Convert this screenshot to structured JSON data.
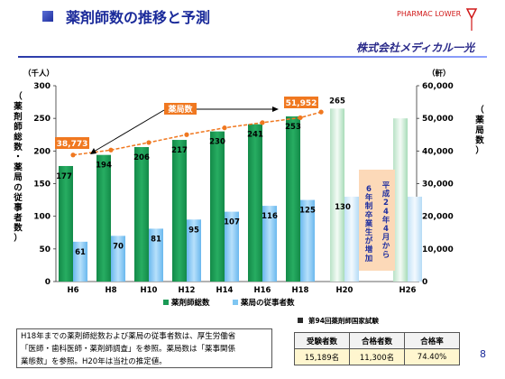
{
  "header": {
    "title": "薬剤師数の推移と予測",
    "logo_text": "PHARMAC  LOWER",
    "company": "株式会社メディカル一光"
  },
  "chart_data": {
    "type": "bar",
    "categories": [
      "H6",
      "H8",
      "H10",
      "H12",
      "H14",
      "H16",
      "H18",
      "H20",
      "H26"
    ],
    "series": [
      {
        "name": "薬剤師総数",
        "values": [
          177,
          194,
          206,
          217,
          230,
          241,
          253,
          265,
          null
        ],
        "color": "#1a9a55",
        "projected_color": "#d9f0e0"
      },
      {
        "name": "薬局の従事者数",
        "values": [
          61,
          70,
          81,
          95,
          107,
          116,
          125,
          130,
          null
        ],
        "color": "#7fc6f2",
        "projected_color": "#d8edfb"
      },
      {
        "name": "薬局数",
        "values": [
          38773,
          null,
          null,
          null,
          null,
          null,
          51952,
          null,
          null
        ],
        "color": "#f07820",
        "axis": "right"
      }
    ],
    "pharmacy_line_points": [
      [
        0,
        38773
      ],
      [
        1,
        40300
      ],
      [
        2,
        42600
      ],
      [
        3,
        45000
      ],
      [
        4,
        47100
      ],
      [
        5,
        48700
      ],
      [
        6,
        50200
      ],
      [
        6.55,
        51952
      ]
    ],
    "left_axis": {
      "label": "（薬剤師総数・薬局の従事者数）",
      "unit": "（千人）",
      "ylim": [
        0,
        300
      ],
      "ticks": [
        0,
        50,
        100,
        150,
        200,
        250,
        300
      ]
    },
    "right_axis": {
      "label": "（薬局数）",
      "unit": "（軒）",
      "ylim": [
        0,
        60000
      ],
      "ticks": [
        "0",
        "10,000",
        "20,000",
        "30,000",
        "40,000",
        "50,000",
        "60,000"
      ]
    },
    "callouts": {
      "pharmacy_start": "38,773",
      "pharmacy_end": "51,952",
      "pharmacy_label": "薬局数",
      "note_line1": "平成24年4月から",
      "note_line2": "6年制卒業生が増加"
    },
    "legend": [
      "薬剤師総数",
      "薬局の従事者数"
    ],
    "legend_position": "bottom"
  },
  "notes": {
    "line1": "H18年までの薬剤師総数および薬局の従事者数は、厚生労働省",
    "line2": "「医師・歯科医師・薬剤師調査」を参照。薬局数は「薬事関係",
    "line3": "業態数」を参照。H20年は当社の推定値。"
  },
  "exam": {
    "title": "第94回薬剤師国家試験",
    "headers": [
      "受験者数",
      "合格者数",
      "合格率"
    ],
    "values": [
      "15,189名",
      "11,300名",
      "74.40%"
    ]
  },
  "page_number": "8"
}
